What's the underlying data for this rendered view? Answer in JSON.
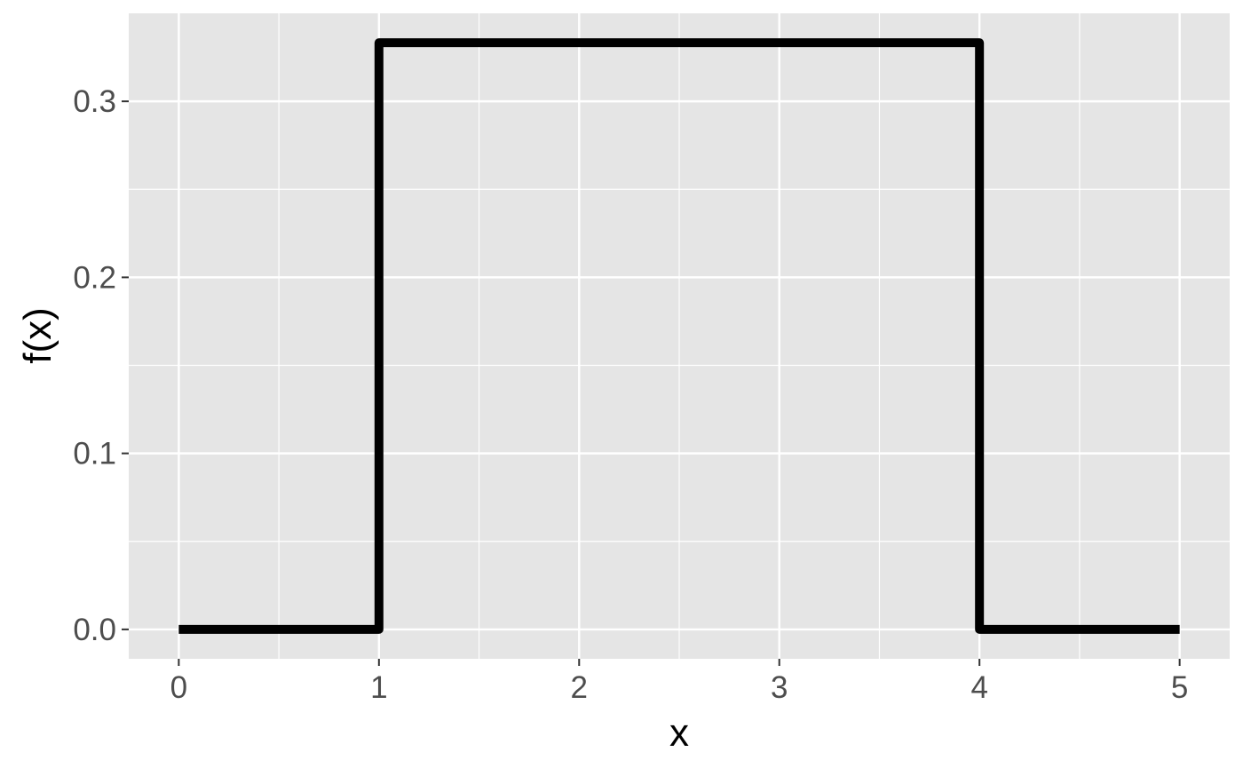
{
  "chart_data": {
    "type": "line",
    "step": true,
    "xlabel": "x",
    "ylabel": "f(x)",
    "xlim": [
      -0.25,
      5.25
    ],
    "ylim": [
      -0.0167,
      0.35
    ],
    "x_ticks": [
      0,
      1,
      2,
      3,
      4,
      5
    ],
    "x_tick_labels": [
      "0",
      "1",
      "2",
      "3",
      "4",
      "5"
    ],
    "y_ticks": [
      0.0,
      0.1,
      0.2,
      0.3
    ],
    "y_tick_labels": [
      "0.0",
      "0.1",
      "0.2",
      "0.3"
    ],
    "grid": true,
    "legend": "none",
    "series": [
      {
        "x": [
          0,
          1,
          1,
          4,
          4,
          5
        ],
        "y": [
          0,
          0,
          0.3333,
          0.3333,
          0,
          0
        ],
        "color": "#000000"
      }
    ]
  },
  "colors": {
    "panel_background": "#e5e5e5",
    "grid": "#ffffff",
    "tick_text": "#4d4d4d",
    "tick_mark": "#333333"
  }
}
